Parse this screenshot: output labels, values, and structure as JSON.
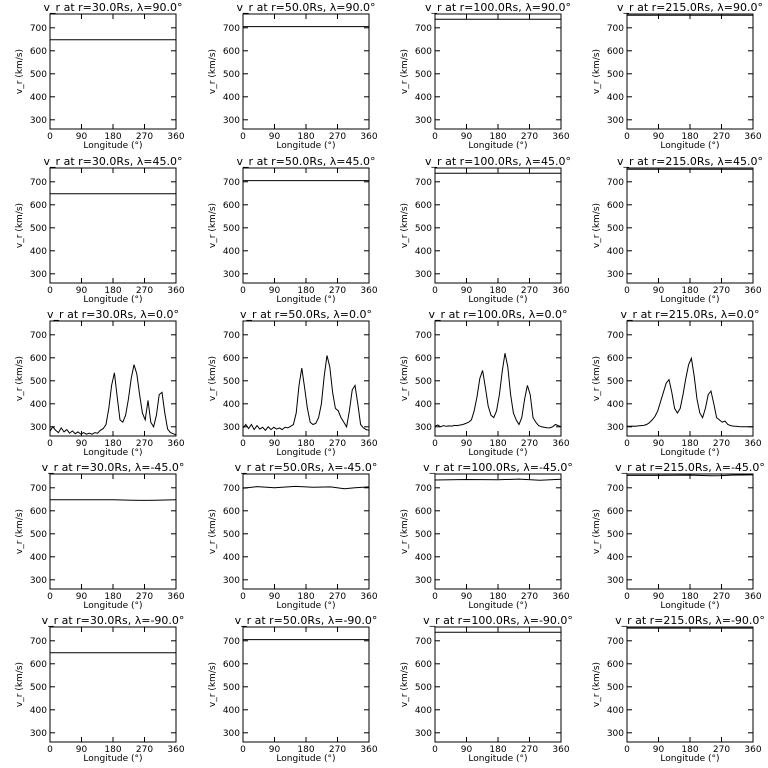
{
  "axes_common": {
    "xlabel": "Longitude (°)",
    "ylabel": "v_r (km/s)",
    "xlim": [
      0,
      360
    ],
    "ylim": [
      260,
      760
    ],
    "xticks": [
      0,
      90,
      180,
      270,
      360
    ],
    "yticks": [
      300,
      400,
      500,
      600,
      700
    ]
  },
  "chart_data": [
    {
      "type": "line",
      "title": "v_r at r=30.0Rs, λ=90.0°",
      "x": [
        0,
        360
      ],
      "y": [
        648,
        648
      ]
    },
    {
      "type": "line",
      "title": "v_r at r=50.0Rs, λ=90.0°",
      "x": [
        0,
        360
      ],
      "y": [
        705,
        705
      ]
    },
    {
      "type": "line",
      "title": "v_r at r=100.0Rs, λ=90.0°",
      "x": [
        0,
        360
      ],
      "y": [
        737,
        737
      ]
    },
    {
      "type": "line",
      "title": "v_r at r=215.0Rs, λ=90.0°",
      "x": [
        0,
        360
      ],
      "y": [
        755,
        755
      ]
    },
    {
      "type": "line",
      "title": "v_r at r=30.0Rs, λ=45.0°",
      "x": [
        0,
        360
      ],
      "y": [
        648,
        648
      ]
    },
    {
      "type": "line",
      "title": "v_r at r=50.0Rs, λ=45.0°",
      "x": [
        0,
        360
      ],
      "y": [
        705,
        705
      ]
    },
    {
      "type": "line",
      "title": "v_r at r=100.0Rs, λ=45.0°",
      "x": [
        0,
        360
      ],
      "y": [
        737,
        737
      ]
    },
    {
      "type": "line",
      "title": "v_r at r=215.0Rs, λ=45.0°",
      "x": [
        0,
        360
      ],
      "y": [
        755,
        755
      ]
    },
    {
      "type": "line",
      "title": "v_r at r=30.0Rs, λ=0.0°",
      "x": [
        0,
        8,
        16,
        24,
        32,
        40,
        48,
        56,
        64,
        72,
        80,
        88,
        96,
        104,
        112,
        120,
        128,
        136,
        144,
        152,
        160,
        168,
        176,
        184,
        192,
        200,
        208,
        216,
        224,
        232,
        240,
        248,
        256,
        264,
        272,
        280,
        288,
        296,
        304,
        312,
        320,
        328,
        336,
        344,
        352,
        360
      ],
      "y": [
        280,
        300,
        285,
        275,
        295,
        278,
        288,
        272,
        282,
        270,
        278,
        268,
        275,
        268,
        272,
        268,
        275,
        272,
        285,
        292,
        310,
        380,
        480,
        535,
        430,
        330,
        320,
        350,
        420,
        510,
        570,
        530,
        440,
        360,
        330,
        415,
        320,
        300,
        350,
        440,
        450,
        360,
        290,
        275,
        270,
        265
      ]
    },
    {
      "type": "line",
      "title": "v_r at r=50.0Rs, λ=0.0°",
      "x": [
        0,
        8,
        16,
        24,
        32,
        40,
        48,
        56,
        64,
        72,
        80,
        88,
        96,
        104,
        112,
        120,
        128,
        136,
        144,
        152,
        160,
        168,
        176,
        184,
        192,
        200,
        208,
        216,
        224,
        232,
        240,
        248,
        256,
        264,
        272,
        280,
        288,
        296,
        304,
        312,
        320,
        328,
        336,
        344,
        352,
        360
      ],
      "y": [
        295,
        310,
        292,
        310,
        288,
        305,
        290,
        298,
        285,
        300,
        288,
        298,
        290,
        295,
        288,
        298,
        295,
        302,
        310,
        360,
        480,
        555,
        470,
        380,
        320,
        310,
        315,
        340,
        400,
        520,
        610,
        560,
        450,
        380,
        370,
        340,
        320,
        300,
        370,
        460,
        480,
        400,
        310,
        295,
        288,
        285
      ]
    },
    {
      "type": "line",
      "title": "v_r at r=100.0Rs, λ=0.0°",
      "x": [
        0,
        8,
        16,
        24,
        32,
        40,
        48,
        56,
        64,
        72,
        80,
        88,
        96,
        104,
        112,
        120,
        128,
        136,
        144,
        152,
        160,
        168,
        176,
        184,
        192,
        200,
        208,
        216,
        224,
        232,
        240,
        248,
        256,
        264,
        272,
        280,
        288,
        296,
        304,
        312,
        320,
        328,
        336,
        344,
        352,
        360
      ],
      "y": [
        302,
        308,
        300,
        305,
        302,
        304,
        303,
        306,
        305,
        308,
        310,
        315,
        320,
        330,
        370,
        430,
        510,
        545,
        470,
        390,
        350,
        340,
        370,
        440,
        540,
        620,
        560,
        440,
        360,
        330,
        310,
        340,
        420,
        480,
        440,
        340,
        320,
        305,
        300,
        298,
        296,
        295,
        300,
        310,
        305,
        300
      ]
    },
    {
      "type": "line",
      "title": "v_r at r=215.0Rs, λ=0.0°",
      "x": [
        0,
        8,
        16,
        24,
        32,
        40,
        48,
        56,
        64,
        72,
        80,
        88,
        96,
        104,
        112,
        120,
        128,
        136,
        144,
        152,
        160,
        168,
        176,
        184,
        192,
        200,
        208,
        216,
        224,
        232,
        240,
        248,
        256,
        264,
        272,
        280,
        288,
        296,
        304,
        312,
        320,
        328,
        336,
        344,
        352,
        360
      ],
      "y": [
        302,
        302,
        303,
        302,
        304,
        305,
        306,
        310,
        318,
        330,
        345,
        370,
        410,
        450,
        490,
        505,
        450,
        380,
        360,
        380,
        440,
        510,
        570,
        598,
        520,
        420,
        360,
        340,
        380,
        440,
        455,
        400,
        340,
        330,
        320,
        325,
        310,
        305,
        303,
        302,
        301,
        300,
        300,
        300,
        300,
        300
      ]
    },
    {
      "type": "line",
      "title": "v_r at r=30.0Rs, λ=-45.0°",
      "x": [
        0,
        90,
        180,
        240,
        270,
        300,
        360
      ],
      "y": [
        648,
        648,
        648,
        646,
        645,
        646,
        648
      ]
    },
    {
      "type": "line",
      "title": "v_r at r=50.0Rs, λ=-45.0°",
      "x": [
        0,
        40,
        90,
        150,
        200,
        250,
        290,
        320,
        360
      ],
      "y": [
        698,
        705,
        700,
        706,
        702,
        704,
        696,
        700,
        704
      ]
    },
    {
      "type": "line",
      "title": "v_r at r=100.0Rs, λ=-45.0°",
      "x": [
        0,
        90,
        180,
        240,
        300,
        360
      ],
      "y": [
        734,
        736,
        735,
        738,
        733,
        737
      ]
    },
    {
      "type": "line",
      "title": "v_r at r=215.0Rs, λ=-45.0°",
      "x": [
        0,
        90,
        180,
        240,
        270,
        300,
        360
      ],
      "y": [
        754,
        754,
        755,
        752,
        753,
        755,
        756
      ]
    },
    {
      "type": "line",
      "title": "v_r at r=30.0Rs, λ=-90.0°",
      "x": [
        0,
        360
      ],
      "y": [
        648,
        648
      ]
    },
    {
      "type": "line",
      "title": "v_r at r=50.0Rs, λ=-90.0°",
      "x": [
        0,
        360
      ],
      "y": [
        705,
        705
      ]
    },
    {
      "type": "line",
      "title": "v_r at r=100.0Rs, λ=-90.0°",
      "x": [
        0,
        360
      ],
      "y": [
        737,
        737
      ]
    },
    {
      "type": "line",
      "title": "v_r at r=215.0Rs, λ=-90.0°",
      "x": [
        0,
        360
      ],
      "y": [
        755,
        755
      ]
    }
  ]
}
